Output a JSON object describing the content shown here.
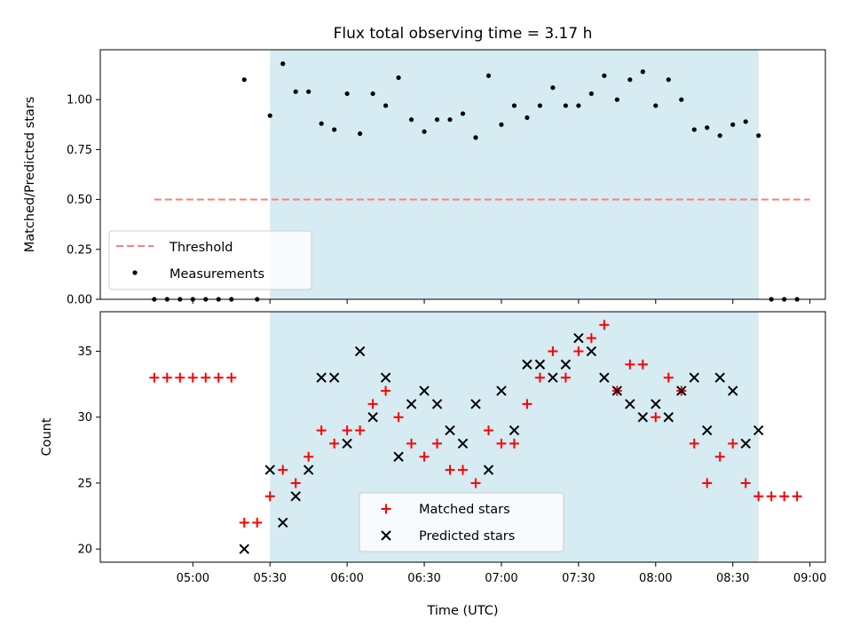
{
  "chart_data": [
    {
      "type": "scatter",
      "title": "Flux total observing time = 3.17 h",
      "xlabel": "",
      "ylabel": "Matched/Predicted stars",
      "ylim": [
        0,
        1.25
      ],
      "xlim": [
        "04:24",
        "09:06"
      ],
      "yticks": [
        0.0,
        0.25,
        0.5,
        0.75,
        1.0
      ],
      "ytick_labels": [
        "0.00",
        "0.25",
        "0.50",
        "0.75",
        "1.00"
      ],
      "shaded_interval": [
        "05:30",
        "08:40"
      ],
      "shaded_color": "#add8e6",
      "legend": {
        "location": "lower-left",
        "entries": [
          "Threshold",
          "Measurements"
        ]
      },
      "series": [
        {
          "name": "Threshold",
          "style": "dashed-line",
          "color": "#ff7f7f",
          "x": [
            "04:45",
            "09:00"
          ],
          "y": [
            0.5,
            0.5
          ]
        },
        {
          "name": "Measurements",
          "style": "dot",
          "color": "#000000",
          "x": [
            "04:45",
            "04:50",
            "04:55",
            "05:00",
            "05:05",
            "05:10",
            "05:15",
            "05:20",
            "05:25",
            "05:30",
            "05:35",
            "05:40",
            "05:45",
            "05:50",
            "05:55",
            "06:00",
            "06:05",
            "06:10",
            "06:15",
            "06:20",
            "06:25",
            "06:30",
            "06:35",
            "06:40",
            "06:45",
            "06:50",
            "06:55",
            "07:00",
            "07:05",
            "07:10",
            "07:15",
            "07:20",
            "07:25",
            "07:30",
            "07:35",
            "07:40",
            "07:45",
            "07:50",
            "07:55",
            "08:00",
            "08:05",
            "08:10",
            "08:15",
            "08:20",
            "08:25",
            "08:30",
            "08:35",
            "08:40",
            "08:45",
            "08:50",
            "08:55"
          ],
          "y": [
            0,
            0,
            0,
            0,
            0,
            0,
            0,
            1.1,
            0,
            0.92,
            1.18,
            1.04,
            1.04,
            0.88,
            0.85,
            1.03,
            0.83,
            1.03,
            0.97,
            1.11,
            0.9,
            0.84,
            0.9,
            0.9,
            0.93,
            0.81,
            1.12,
            0.875,
            0.97,
            0.91,
            0.97,
            1.06,
            0.97,
            0.97,
            1.03,
            1.12,
            1.0,
            1.1,
            1.14,
            0.97,
            1.1,
            1.0,
            0.85,
            0.86,
            0.82,
            0.875,
            0.89,
            0.82,
            0,
            0,
            0
          ]
        }
      ]
    },
    {
      "type": "scatter",
      "title": "",
      "xlabel": "Time (UTC)",
      "ylabel": "Count",
      "ylim": [
        19,
        38
      ],
      "xlim": [
        "04:24",
        "09:06"
      ],
      "yticks": [
        20,
        25,
        30,
        35
      ],
      "ytick_labels": [
        "20",
        "25",
        "30",
        "35"
      ],
      "xtick_labels": [
        "05:00",
        "05:30",
        "06:00",
        "06:30",
        "07:00",
        "07:30",
        "08:00",
        "08:30",
        "09:00"
      ],
      "shaded_interval": [
        "05:30",
        "08:40"
      ],
      "shaded_color": "#add8e6",
      "legend": {
        "location": "lower-center",
        "entries": [
          "Matched stars",
          "Predicted stars"
        ]
      },
      "series": [
        {
          "name": "Matched stars",
          "style": "plus",
          "color": "#ff0000",
          "x": [
            "04:45",
            "04:50",
            "04:55",
            "05:00",
            "05:05",
            "05:10",
            "05:15",
            "05:20",
            "05:25",
            "05:30",
            "05:35",
            "05:40",
            "05:45",
            "05:50",
            "05:55",
            "06:00",
            "06:05",
            "06:10",
            "06:15",
            "06:20",
            "06:25",
            "06:30",
            "06:35",
            "06:40",
            "06:45",
            "06:50",
            "06:55",
            "07:00",
            "07:05",
            "07:10",
            "07:15",
            "07:20",
            "07:25",
            "07:30",
            "07:35",
            "07:40",
            "07:45",
            "07:50",
            "07:55",
            "08:00",
            "08:05",
            "08:10",
            "08:15",
            "08:20",
            "08:25",
            "08:30",
            "08:35",
            "08:40",
            "08:45",
            "08:50",
            "08:55"
          ],
          "y": [
            33,
            33,
            33,
            33,
            33,
            33,
            33,
            22,
            22,
            24,
            26,
            25,
            27,
            29,
            28,
            29,
            29,
            31,
            32,
            30,
            28,
            27,
            28,
            26,
            26,
            25,
            29,
            28,
            28,
            31,
            33,
            35,
            33,
            35,
            36,
            37,
            32,
            34,
            34,
            30,
            33,
            32,
            28,
            25,
            27,
            28,
            25,
            24,
            24,
            24,
            24
          ]
        },
        {
          "name": "Predicted stars",
          "style": "x",
          "color": "#000000",
          "x": [
            "05:20",
            "05:30",
            "05:35",
            "05:40",
            "05:45",
            "05:50",
            "05:55",
            "06:00",
            "06:05",
            "06:10",
            "06:15",
            "06:20",
            "06:25",
            "06:30",
            "06:35",
            "06:40",
            "06:45",
            "06:50",
            "06:55",
            "07:00",
            "07:05",
            "07:10",
            "07:15",
            "07:20",
            "07:25",
            "07:30",
            "07:35",
            "07:40",
            "07:45",
            "07:50",
            "07:55",
            "08:00",
            "08:05",
            "08:10",
            "08:15",
            "08:20",
            "08:25",
            "08:30",
            "08:35",
            "08:40"
          ],
          "y": [
            20,
            26,
            22,
            24,
            26,
            33,
            33,
            28,
            35,
            30,
            33,
            27,
            31,
            32,
            31,
            29,
            28,
            31,
            26,
            32,
            29,
            34,
            34,
            33,
            34,
            36,
            35,
            33,
            32,
            31,
            30,
            31,
            30,
            32,
            33,
            29,
            33,
            32,
            28,
            29
          ]
        }
      ]
    }
  ]
}
